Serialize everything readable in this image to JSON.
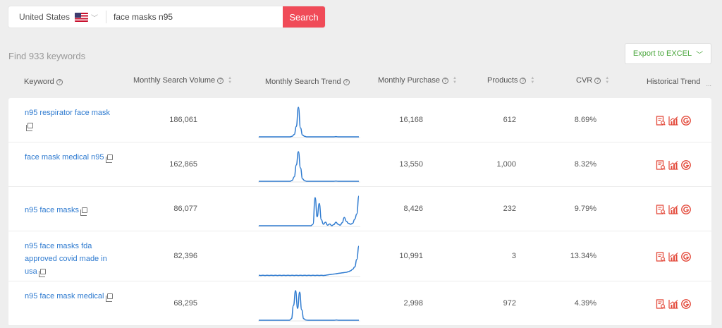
{
  "search": {
    "country": "United States",
    "query": "face masks n95",
    "button": "Search"
  },
  "summary": "Find 933 keywords",
  "export_label": "Export to EXCEL",
  "columns": {
    "keyword": "Keyword",
    "volume": "Monthly Search Volume",
    "trend": "Monthly Search Trend",
    "purchase": "Monthly Purchase",
    "products": "Products",
    "cvr": "CVR",
    "history": "Historical Trend",
    "more": "..."
  },
  "rows": [
    {
      "keyword": "n95 respirator face mask",
      "volume": "186,061",
      "purchase": "16,168",
      "products": "612",
      "cvr": "8.69%",
      "trend": [
        0,
        0,
        0,
        0,
        0,
        0,
        0,
        0,
        0,
        0,
        0,
        0,
        0,
        0,
        0,
        0,
        0.02,
        0.08,
        0.35,
        1,
        0.3,
        0.06,
        0.02,
        0,
        0,
        0,
        0,
        0,
        0,
        0,
        0,
        0,
        0,
        0,
        0,
        0,
        0,
        0.01,
        0,
        0,
        0,
        0,
        0,
        0,
        0,
        0,
        0,
        0,
        0
      ]
    },
    {
      "keyword": "face mask medical n95",
      "volume": "162,865",
      "purchase": "13,550",
      "products": "1,000",
      "cvr": "8.32%",
      "trend": [
        0,
        0,
        0,
        0,
        0,
        0,
        0,
        0,
        0,
        0,
        0,
        0,
        0,
        0,
        0,
        0,
        0.03,
        0.15,
        0.55,
        1,
        0.45,
        0.08,
        0.02,
        0,
        0,
        0,
        0,
        0,
        0,
        0,
        0,
        0,
        0,
        0,
        0,
        0,
        0,
        0.01,
        0,
        0,
        0,
        0,
        0,
        0,
        0,
        0,
        0,
        0,
        0
      ]
    },
    {
      "keyword": "n95 face masks",
      "volume": "86,077",
      "purchase": "8,426",
      "products": "232",
      "cvr": "9.79%",
      "trend": [
        0,
        0,
        0,
        0,
        0,
        0,
        0,
        0,
        0,
        0,
        0,
        0,
        0,
        0,
        0,
        0,
        0,
        0,
        0,
        0,
        0,
        0,
        0,
        0,
        0,
        0,
        0.05,
        0.95,
        0.3,
        0.75,
        0.2,
        0.05,
        0.12,
        0.02,
        0.06,
        0,
        0.04,
        0.12,
        0.05,
        0.02,
        0.1,
        0.28,
        0.15,
        0.08,
        0.05,
        0.08,
        0.22,
        0.4,
        1
      ]
    },
    {
      "keyword": "n95 face masks fda approved covid made in usa",
      "volume": "82,396",
      "purchase": "10,991",
      "products": "3",
      "cvr": "13.34%",
      "trend": [
        0.02,
        0.01,
        0.02,
        0.01,
        0.02,
        0.01,
        0.02,
        0.01,
        0.02,
        0.01,
        0.02,
        0.01,
        0.02,
        0.01,
        0.02,
        0.01,
        0.02,
        0.01,
        0.02,
        0.01,
        0.02,
        0.01,
        0.02,
        0.01,
        0.02,
        0.01,
        0.02,
        0.01,
        0.02,
        0.01,
        0.02,
        0.01,
        0.02,
        0.03,
        0.04,
        0.05,
        0.06,
        0.07,
        0.08,
        0.09,
        0.1,
        0.11,
        0.12,
        0.14,
        0.17,
        0.22,
        0.3,
        0.55,
        1
      ]
    },
    {
      "keyword": "n95 face mask medical",
      "volume": "68,295",
      "purchase": "2,998",
      "products": "972",
      "cvr": "4.39%",
      "trend": [
        0,
        0,
        0,
        0,
        0,
        0,
        0,
        0,
        0,
        0,
        0,
        0,
        0,
        0,
        0,
        0,
        0.05,
        0.5,
        1,
        0.4,
        0.95,
        0.35,
        0.05,
        0.01,
        0,
        0,
        0,
        0,
        0,
        0,
        0,
        0,
        0,
        0,
        0,
        0,
        0,
        0,
        0.01,
        0,
        0,
        0,
        0,
        0,
        0,
        0,
        0,
        0,
        0,
        0
      ]
    }
  ],
  "colors": {
    "accent": "#f04b58",
    "link": "#2f7bd0",
    "spark": "#2f7bd0",
    "icon": "#e3493a",
    "export": "#4aa63c"
  },
  "icons": [
    "report-icon",
    "bar-chart-icon",
    "google-icon"
  ]
}
